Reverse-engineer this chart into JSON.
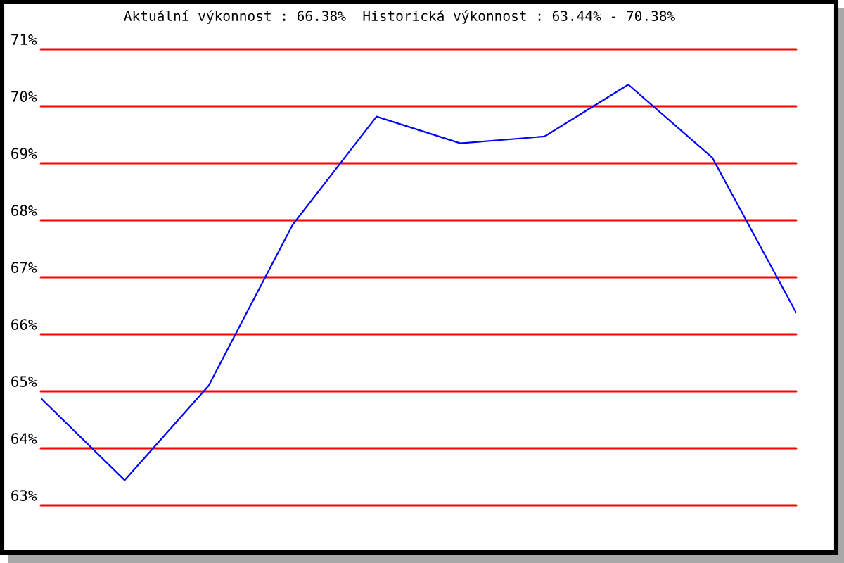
{
  "chart_data": {
    "type": "line",
    "title": "Aktuální výkonnost : 66.38%  Historická výkonnost : 63.44% - 70.38%",
    "categories": [
      null,
      null,
      null,
      null,
      null,
      null,
      null,
      null,
      null,
      null
    ],
    "series": [
      {
        "color": "#0000ff",
        "values": [
          64.88,
          63.44,
          65.1,
          67.92,
          69.82,
          69.35,
          69.47,
          70.38,
          69.1,
          66.38
        ]
      }
    ],
    "ylim": [
      63,
      71
    ],
    "yticks": [
      {
        "value": 63,
        "label": "63%"
      },
      {
        "value": 64,
        "label": "64%"
      },
      {
        "value": 65,
        "label": "65%"
      },
      {
        "value": 66,
        "label": "66%"
      },
      {
        "value": 67,
        "label": "67%"
      },
      {
        "value": 68,
        "label": "68%"
      },
      {
        "value": 69,
        "label": "69%"
      },
      {
        "value": 70,
        "label": "70%"
      },
      {
        "value": 71,
        "label": "71%"
      }
    ],
    "grid": "y",
    "tick_labels": "y",
    "marker": "none",
    "line_style": "solid"
  }
}
